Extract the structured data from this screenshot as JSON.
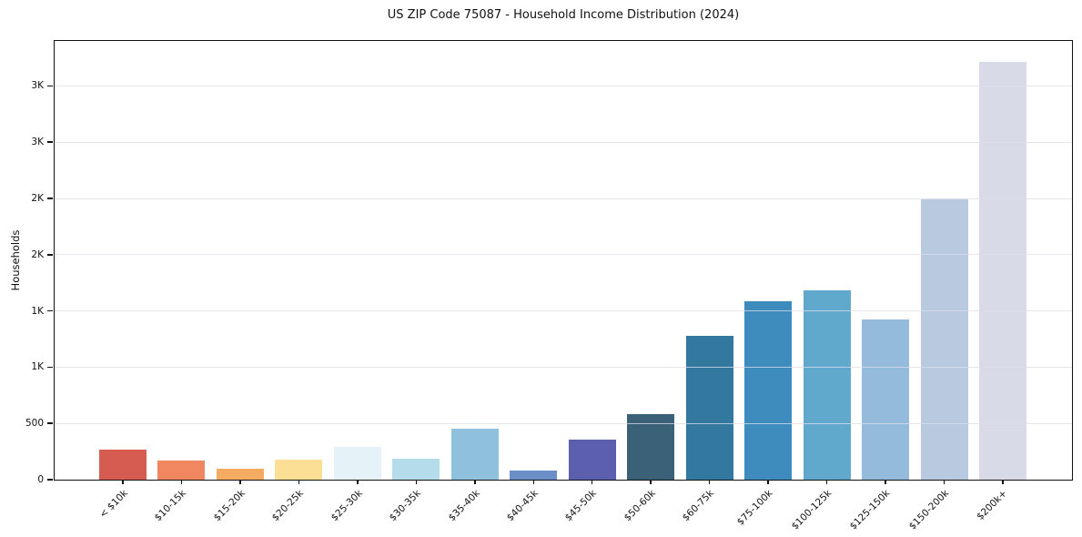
{
  "chart_data": {
    "type": "bar",
    "title": "US ZIP Code 75087 - Household Income Distribution (2024)",
    "xlabel": "",
    "ylabel": "Households",
    "categories": [
      "< $10k",
      "$10-15k",
      "$15-20k",
      "$20-25k",
      "$25-30k",
      "$30-35k",
      "$35-40k",
      "$40-45k",
      "$45-50k",
      "$50-60k",
      "$60-75k",
      "$75-100k",
      "$100-125k",
      "$125-150k",
      "$150-200k",
      "$200k+"
    ],
    "values": [
      270,
      170,
      100,
      180,
      290,
      187,
      450,
      82,
      360,
      582,
      1278,
      1583,
      1680,
      1424,
      2490,
      3710
    ],
    "bar_colors": [
      "#d65c51",
      "#f08761",
      "#f6ab63",
      "#fbdf95",
      "#e5f2f7",
      "#b4dcea",
      "#8fc1dd",
      "#6b8ec6",
      "#5c5fae",
      "#3a6177",
      "#33799f",
      "#3d8cbd",
      "#61a8cd",
      "#94badc",
      "#b9c9df",
      "#d8dae7"
    ],
    "y_ticks": [
      {
        "value": 0,
        "label": "0"
      },
      {
        "value": 500,
        "label": "500"
      },
      {
        "value": 1000,
        "label": "1K"
      },
      {
        "value": 1500,
        "label": "1K"
      },
      {
        "value": 2000,
        "label": "2K"
      },
      {
        "value": 2500,
        "label": "2K"
      },
      {
        "value": 3000,
        "label": "3K"
      },
      {
        "value": 3500,
        "label": "3K"
      }
    ],
    "ylim": [
      0,
      3900
    ],
    "grid": "horizontal",
    "legend": "none",
    "x_tick_rotation_deg": 45
  }
}
